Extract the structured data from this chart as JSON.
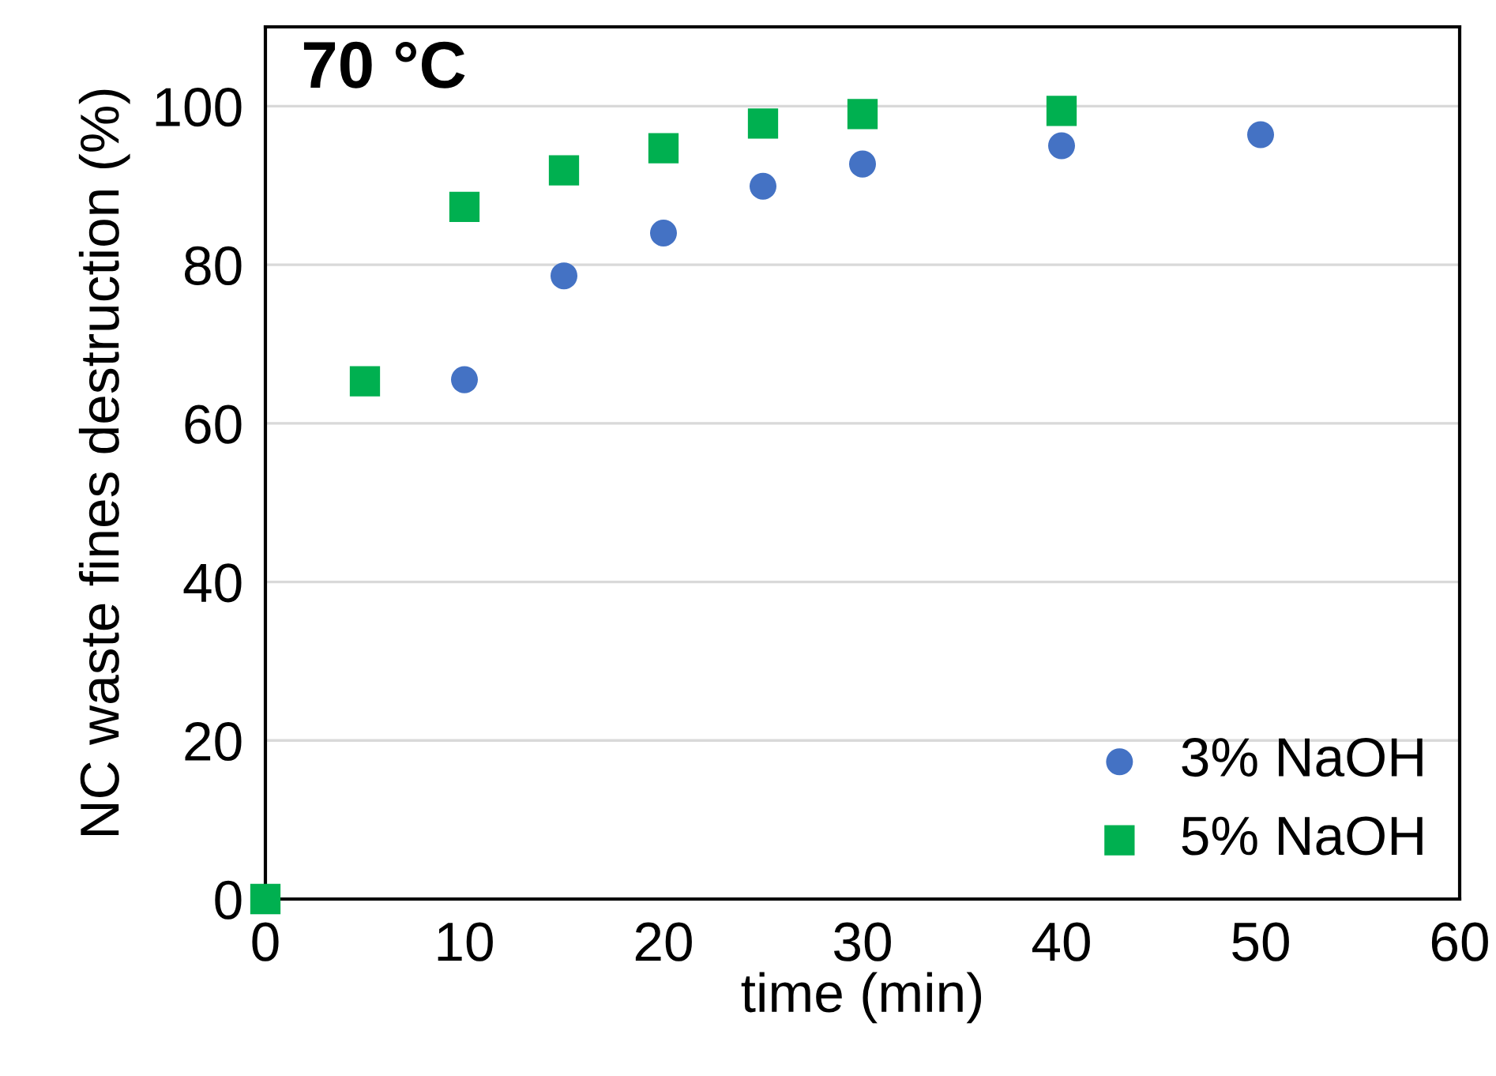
{
  "chart_data": {
    "type": "scatter",
    "xlabel": "time (min)",
    "ylabel": "NC waste fines destruction (%)",
    "annotations": [
      "70 °C"
    ],
    "xlim": [
      0,
      60
    ],
    "xticks": [
      0,
      10,
      20,
      30,
      40,
      50,
      60
    ],
    "ylim": [
      0,
      110
    ],
    "yticks": [
      0,
      20,
      40,
      60,
      80,
      100
    ],
    "grid": "y",
    "legend": "bottom right",
    "series": [
      {
        "name": "3% NaOH",
        "color": "#4472c4",
        "marker": "circle",
        "x": [
          10,
          15,
          20,
          25,
          30,
          40,
          50
        ],
        "values": [
          65.5,
          78.6,
          84.0,
          89.9,
          92.7,
          95.0,
          96.4
        ]
      },
      {
        "name": "5% NaOH",
        "color": "#00b050",
        "marker": "square",
        "x": [
          0,
          5,
          10,
          15,
          20,
          25,
          30,
          40
        ],
        "values": [
          0,
          65.3,
          87.3,
          91.9,
          94.7,
          97.8,
          99.0,
          99.4
        ]
      }
    ]
  }
}
